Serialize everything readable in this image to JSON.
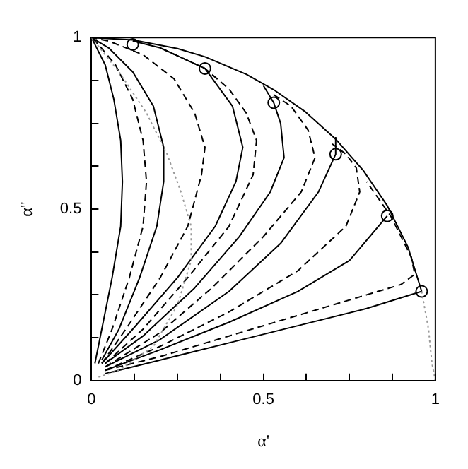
{
  "chart_data": {
    "type": "line",
    "xlabel": "α'",
    "ylabel": "α''",
    "xlim": [
      0,
      1
    ],
    "ylim": [
      0,
      1
    ],
    "xticks": [
      0,
      {
        "value": 0.125,
        "label": null
      },
      {
        "value": 0.25,
        "label": null
      },
      {
        "value": 0.375,
        "label": null
      },
      0.5,
      {
        "value": 0.625,
        "label": null
      },
      {
        "value": 0.75,
        "label": null
      },
      {
        "value": 0.875,
        "label": null
      },
      1
    ],
    "yticks": [
      0,
      {
        "value": 0.125,
        "label": null
      },
      {
        "value": 0.25,
        "label": null
      },
      {
        "value": 0.375,
        "label": null
      },
      0.5,
      {
        "value": 0.625,
        "label": null
      },
      {
        "value": 0.75,
        "label": null
      },
      {
        "value": 0.875,
        "label": null
      },
      1
    ],
    "grid": false,
    "legend": false,
    "marker": "none",
    "line_style": "solid",
    "series": [
      {
        "color": "#000000",
        "x": [
          0,
          0.12,
          0.25,
          0.33,
          0.45,
          0.53,
          0.62,
          0.71,
          0.79,
          0.86,
          0.92,
          0.96
        ],
        "values": [
          1,
          0.993,
          0.968,
          0.944,
          0.893,
          0.848,
          0.785,
          0.704,
          0.613,
          0.51,
          0.39,
          0.26
        ]
      },
      {
        "color": "#999999",
        "line_style": "dotted",
        "x": [
          0.96,
          0.98,
          0.99,
          1
        ],
        "values": [
          0.26,
          0.15,
          0.05,
          0
        ]
      },
      {
        "color": "#999999",
        "line_style": "dotted",
        "x": [
          0,
          0.08,
          0.16,
          0.22,
          0.26,
          0.29,
          0.29,
          0.25,
          0.18,
          0.08,
          0.02
        ],
        "values": [
          1,
          0.9,
          0.78,
          0.66,
          0.55,
          0.45,
          0.35,
          0.22,
          0.1,
          0.03,
          0.01
        ]
      },
      {
        "color": "#000000",
        "x": [
          0.04,
          0.2,
          0.4,
          0.6,
          0.8,
          0.96
        ],
        "values": [
          0.02,
          0.06,
          0.11,
          0.16,
          0.21,
          0.26
        ]
      },
      {
        "color": "#000000",
        "line_style": "dashed",
        "x": [
          0.04,
          0.2,
          0.4,
          0.6,
          0.8,
          0.9,
          0.94,
          0.93,
          0.87,
          0.8
        ],
        "values": [
          0.03,
          0.07,
          0.13,
          0.19,
          0.25,
          0.28,
          0.31,
          0.36,
          0.48,
          0.58
        ]
      },
      {
        "color": "#000000",
        "x": [
          0.04,
          0.2,
          0.4,
          0.6,
          0.75,
          0.86
        ],
        "values": [
          0.03,
          0.09,
          0.17,
          0.26,
          0.35,
          0.48
        ]
      },
      {
        "color": "#000000",
        "line_style": "dashed",
        "x": [
          0.04,
          0.2,
          0.4,
          0.6,
          0.74,
          0.78,
          0.77,
          0.74,
          0.7
        ],
        "values": [
          0.03,
          0.1,
          0.2,
          0.32,
          0.45,
          0.55,
          0.62,
          0.66,
          0.69
        ]
      },
      {
        "color": "#000000",
        "x": [
          0.04,
          0.2,
          0.4,
          0.55,
          0.66,
          0.71,
          0.71
        ],
        "values": [
          0.04,
          0.12,
          0.26,
          0.4,
          0.55,
          0.66,
          0.71
        ]
      },
      {
        "color": "#000000",
        "line_style": "dashed",
        "x": [
          0.04,
          0.2,
          0.35,
          0.5,
          0.61,
          0.65,
          0.63,
          0.58,
          0.52
        ],
        "values": [
          0.04,
          0.14,
          0.27,
          0.42,
          0.55,
          0.65,
          0.73,
          0.8,
          0.84
        ]
      },
      {
        "color": "#000000",
        "x": [
          0.04,
          0.15,
          0.3,
          0.43,
          0.52,
          0.56,
          0.55,
          0.53,
          0.5
        ],
        "values": [
          0.05,
          0.13,
          0.27,
          0.42,
          0.55,
          0.65,
          0.75,
          0.81,
          0.86
        ]
      },
      {
        "color": "#000000",
        "line_style": "dashed",
        "x": [
          0.04,
          0.15,
          0.28,
          0.4,
          0.47,
          0.48,
          0.45,
          0.4,
          0.33,
          0.2
        ],
        "values": [
          0.05,
          0.15,
          0.3,
          0.45,
          0.6,
          0.7,
          0.78,
          0.85,
          0.91,
          0.97
        ]
      },
      {
        "color": "#000000",
        "x": [
          0.03,
          0.12,
          0.25,
          0.36,
          0.42,
          0.44,
          0.41,
          0.33,
          0.2,
          0.12
        ],
        "values": [
          0.05,
          0.15,
          0.3,
          0.45,
          0.58,
          0.68,
          0.8,
          0.91,
          0.97,
          0.99
        ]
      },
      {
        "color": "#000000",
        "line_style": "dashed",
        "x": [
          0.03,
          0.1,
          0.2,
          0.28,
          0.32,
          0.33,
          0.3,
          0.24,
          0.15,
          0.05,
          0
        ],
        "values": [
          0.05,
          0.15,
          0.3,
          0.45,
          0.6,
          0.68,
          0.78,
          0.88,
          0.95,
          0.99,
          1
        ]
      },
      {
        "color": "#000000",
        "x": [
          0.03,
          0.08,
          0.14,
          0.19,
          0.21,
          0.21,
          0.18,
          0.12,
          0.05,
          0
        ],
        "values": [
          0.06,
          0.15,
          0.3,
          0.45,
          0.58,
          0.68,
          0.8,
          0.9,
          0.97,
          1
        ]
      },
      {
        "color": "#000000",
        "line_style": "dashed",
        "x": [
          0.02,
          0.06,
          0.11,
          0.15,
          0.16,
          0.15,
          0.12,
          0.07,
          0.02,
          0
        ],
        "values": [
          0.05,
          0.15,
          0.3,
          0.45,
          0.58,
          0.7,
          0.82,
          0.92,
          0.98,
          1
        ]
      },
      {
        "color": "#000000",
        "x": [
          0.01,
          0.03,
          0.06,
          0.085,
          0.09,
          0.085,
          0.065,
          0.04,
          0.01,
          0
        ],
        "values": [
          0.05,
          0.15,
          0.3,
          0.45,
          0.58,
          0.7,
          0.82,
          0.92,
          0.98,
          1
        ]
      },
      {
        "color": "#000000",
        "type": "scatter",
        "marker": "circle",
        "x": [
          0.12,
          0.33,
          0.53,
          0.71,
          0.86,
          0.96
        ],
        "values": [
          0.98,
          0.91,
          0.81,
          0.66,
          0.48,
          0.26
        ]
      }
    ]
  }
}
